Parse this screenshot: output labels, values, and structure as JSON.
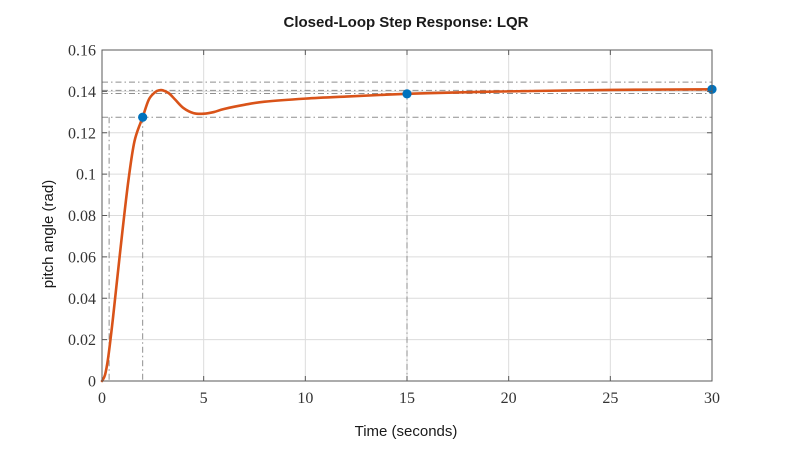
{
  "chart_data": {
    "type": "line",
    "title": "Closed-Loop Step Response: LQR",
    "xlabel": "Time (seconds)",
    "ylabel": "pitch angle (rad)",
    "xlim": [
      0,
      30
    ],
    "ylim": [
      0,
      0.16
    ],
    "xticks": [
      0,
      5,
      10,
      15,
      20,
      25,
      30
    ],
    "yticks": [
      0,
      0.02,
      0.04,
      0.06,
      0.08,
      0.1,
      0.12,
      0.14,
      0.16
    ],
    "xtick_labels": [
      "0",
      "5",
      "10",
      "15",
      "20",
      "25",
      "30"
    ],
    "ytick_labels": [
      "0",
      "0.02",
      "0.04",
      "0.06",
      "0.08",
      "0.1",
      "0.12",
      "0.14",
      "0.16"
    ],
    "grid": true,
    "series": [
      {
        "color": "#d95319",
        "x": [
          0,
          0.15,
          0.3,
          0.5,
          0.7,
          1.0,
          1.3,
          1.6,
          2.0,
          2.3,
          2.6,
          2.8,
          3.0,
          3.3,
          3.6,
          4.0,
          4.5,
          5.0,
          5.5,
          6.0,
          7.0,
          8.0,
          10.0,
          12.0,
          15.0,
          18.0,
          20.0,
          25.0,
          30.0
        ],
        "y": [
          0,
          0.003,
          0.011,
          0.027,
          0.045,
          0.072,
          0.097,
          0.116,
          0.1275,
          0.136,
          0.1395,
          0.1405,
          0.1405,
          0.139,
          0.136,
          0.132,
          0.1295,
          0.1292,
          0.13,
          0.1315,
          0.1335,
          0.135,
          0.1365,
          0.1375,
          0.1388,
          0.1396,
          0.14,
          0.1407,
          0.141
        ]
      }
    ],
    "markers": [
      {
        "x": 2.0,
        "y": 0.1275,
        "color": "#0072bd"
      },
      {
        "x": 15.0,
        "y": 0.1388,
        "color": "#0072bd"
      },
      {
        "x": 30.0,
        "y": 0.141,
        "color": "#0072bd"
      }
    ],
    "reference_lines": {
      "horizontal": [
        0.1445,
        0.1405,
        0.139,
        0.1275
      ],
      "vertical": [
        {
          "x": 0.35,
          "y_top": 0.1275
        },
        {
          "x": 2.0,
          "y_top": 0.1275
        },
        {
          "x": 15.0,
          "y_top": 0.1388
        }
      ]
    }
  }
}
